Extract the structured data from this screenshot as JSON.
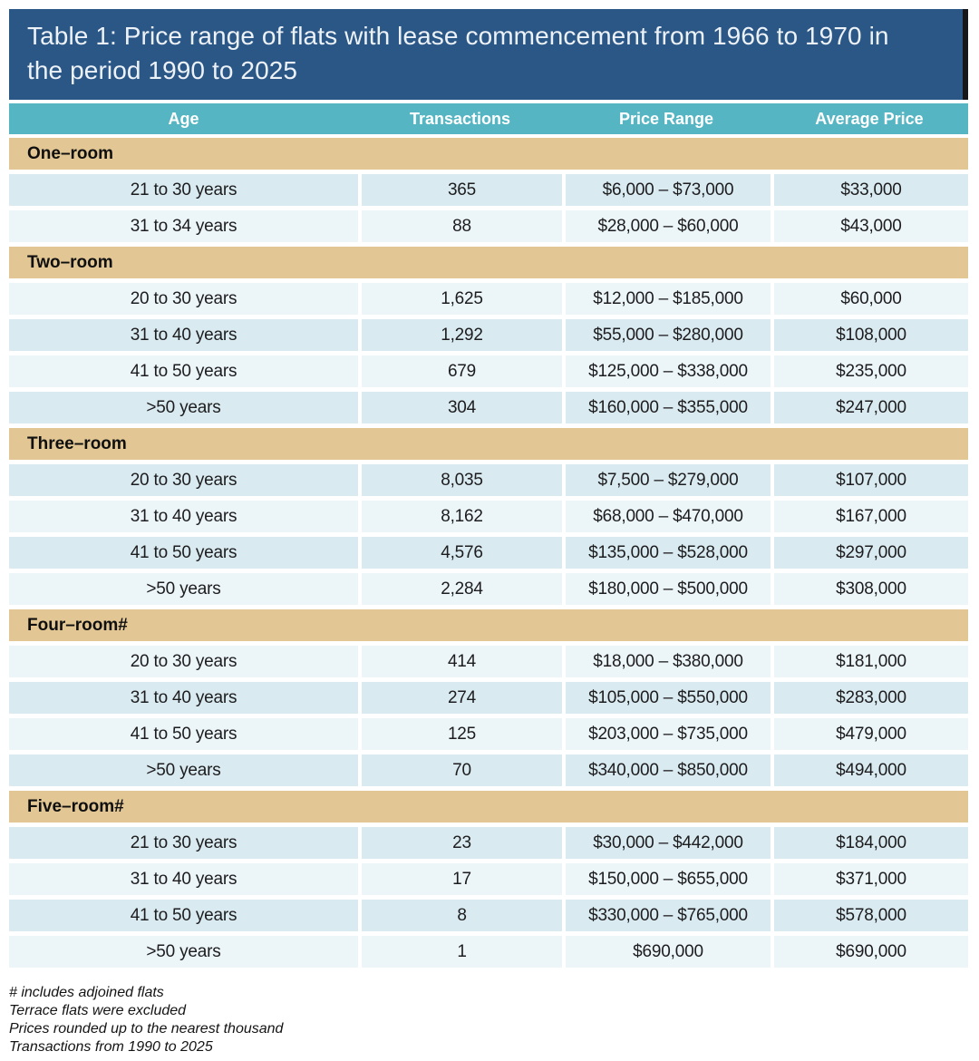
{
  "title": "Table 1: Price range of flats with lease commencement from 1966 to 1970 in the period 1990 to 2025",
  "columns": [
    "Age",
    "Transactions",
    "Price Range",
    "Average Price"
  ],
  "sections": [
    {
      "name": "One–room",
      "rows": [
        {
          "age": "21 to 30 years",
          "transactions": "365",
          "price_range": "$6,000 – $73,000",
          "average_price": "$33,000"
        },
        {
          "age": "31 to 34 years",
          "transactions": "88",
          "price_range": "$28,000 – $60,000",
          "average_price": "$43,000"
        }
      ]
    },
    {
      "name": "Two–room",
      "rows": [
        {
          "age": "20 to 30 years",
          "transactions": "1,625",
          "price_range": "$12,000 – $185,000",
          "average_price": "$60,000"
        },
        {
          "age": "31 to 40 years",
          "transactions": "1,292",
          "price_range": "$55,000 – $280,000",
          "average_price": "$108,000"
        },
        {
          "age": "41 to 50 years",
          "transactions": "679",
          "price_range": "$125,000 – $338,000",
          "average_price": "$235,000"
        },
        {
          "age": ">50 years",
          "transactions": "304",
          "price_range": "$160,000 – $355,000",
          "average_price": "$247,000"
        }
      ]
    },
    {
      "name": "Three–room",
      "rows": [
        {
          "age": "20 to 30 years",
          "transactions": "8,035",
          "price_range": "$7,500 – $279,000",
          "average_price": "$107,000"
        },
        {
          "age": "31 to 40 years",
          "transactions": "8,162",
          "price_range": "$68,000 – $470,000",
          "average_price": "$167,000"
        },
        {
          "age": "41 to 50 years",
          "transactions": "4,576",
          "price_range": "$135,000 – $528,000",
          "average_price": "$297,000"
        },
        {
          "age": ">50 years",
          "transactions": "2,284",
          "price_range": "$180,000 – $500,000",
          "average_price": "$308,000"
        }
      ]
    },
    {
      "name": "Four–room#",
      "rows": [
        {
          "age": "20 to 30 years",
          "transactions": "414",
          "price_range": "$18,000 – $380,000",
          "average_price": "$181,000"
        },
        {
          "age": "31 to 40 years",
          "transactions": "274",
          "price_range": "$105,000 – $550,000",
          "average_price": "$283,000"
        },
        {
          "age": "41 to 50 years",
          "transactions": "125",
          "price_range": "$203,000 – $735,000",
          "average_price": "$479,000"
        },
        {
          "age": ">50 years",
          "transactions": "70",
          "price_range": "$340,000 – $850,000",
          "average_price": "$494,000"
        }
      ]
    },
    {
      "name": "Five–room#",
      "rows": [
        {
          "age": "21 to 30 years",
          "transactions": "23",
          "price_range": "$30,000 – $442,000",
          "average_price": "$184,000"
        },
        {
          "age": "31 to 40 years",
          "transactions": "17",
          "price_range": "$150,000 – $655,000",
          "average_price": "$371,000"
        },
        {
          "age": "41 to 50 years",
          "transactions": "8",
          "price_range": "$330,000 – $765,000",
          "average_price": "$578,000"
        },
        {
          "age": ">50 years",
          "transactions": "1",
          "price_range": "$690,000",
          "average_price": "$690,000"
        }
      ]
    }
  ],
  "footnotes": [
    "# includes adjoined flats",
    "Terrace flats were excluded",
    "Prices rounded up to the nearest thousand",
    "Transactions from 1990 to 2025"
  ],
  "colors": {
    "banner_bg": "#2b5787",
    "banner_edge": "#15171b",
    "title_text": "#edf2f7",
    "header_bg": "#55b5c2",
    "header_text": "#ffffff",
    "section_bg": "#e2c794",
    "row_dark": "#d9eaf0",
    "row_light": "#ecf5f8",
    "text": "#1d1d1f"
  }
}
